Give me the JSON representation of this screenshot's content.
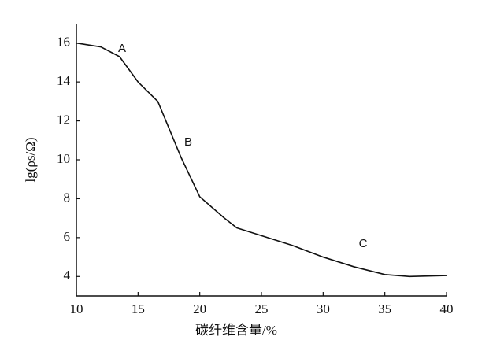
{
  "chart_data": {
    "type": "line",
    "x_label": "碳纤维含量/%",
    "y_label": "lg(ρs/Ω)",
    "annotations": [
      "A",
      "B",
      "C"
    ],
    "x": [
      10,
      12,
      13.5,
      15,
      16.6,
      18.5,
      20,
      22,
      23,
      25,
      27.5,
      30,
      32.5,
      35,
      37,
      40
    ],
    "series": [
      {
        "color": "#111111",
        "values": [
          16,
          15.8,
          15.3,
          14,
          13,
          10.1,
          8.1,
          7,
          6.5,
          6.1,
          5.6,
          5,
          4.5,
          4.1,
          4,
          4.05
        ]
      }
    ],
    "xlim": [
      10,
      40
    ],
    "xticks": [
      10,
      15,
      20,
      25,
      30,
      35,
      40
    ],
    "ylim": [
      3,
      17
    ],
    "yticks": [
      4,
      6,
      8,
      10,
      12,
      14,
      16
    ],
    "grid": false
  }
}
